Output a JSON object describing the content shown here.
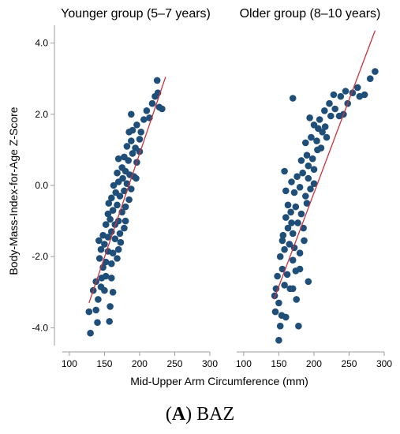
{
  "caption": {
    "letter": "A",
    "text": "BAZ"
  },
  "chart_data": {
    "type": "scatter",
    "ylabel": "Body-Mass-Index-for-Age Z-Score",
    "xlabel": "Mid-Upper Arm Circumference (mm)",
    "xlim": [
      90,
      300
    ],
    "ylim": [
      -4.5,
      4.5
    ],
    "x_ticks": [
      100,
      150,
      200,
      250,
      300
    ],
    "y_ticks": [
      -4.0,
      -2.0,
      0.0,
      2.0,
      4.0
    ],
    "y_tick_labels": [
      "-4.0",
      "-2.0",
      "0.0",
      "2.0",
      "4.0"
    ],
    "colors": {
      "points": "#1f4e79",
      "fit": "#c8323c",
      "axis": "#9e9e9e"
    },
    "panels": [
      {
        "title": "Younger group (5–7 years)",
        "fit_line": {
          "x": [
            128,
            237
          ],
          "y": [
            -3.3,
            3.05
          ]
        },
        "points": [
          [
            130,
            -4.15
          ],
          [
            128,
            -3.55
          ],
          [
            140,
            -3.85
          ],
          [
            157,
            -3.82
          ],
          [
            158,
            -3.4
          ],
          [
            141,
            -3.2
          ],
          [
            134,
            -2.95
          ],
          [
            138,
            -2.7
          ],
          [
            145,
            -2.85
          ],
          [
            152,
            -2.55
          ],
          [
            160,
            -2.6
          ],
          [
            148,
            -2.3
          ],
          [
            143,
            -2.05
          ],
          [
            152,
            -2.15
          ],
          [
            160,
            -2.2
          ],
          [
            168,
            -2.05
          ],
          [
            145,
            -1.8
          ],
          [
            150,
            -1.65
          ],
          [
            155,
            -1.85
          ],
          [
            162,
            -1.9
          ],
          [
            170,
            -1.8
          ],
          [
            148,
            -1.4
          ],
          [
            155,
            -1.45
          ],
          [
            160,
            -1.3
          ],
          [
            165,
            -1.5
          ],
          [
            172,
            -1.35
          ],
          [
            152,
            -1.1
          ],
          [
            158,
            -0.95
          ],
          [
            165,
            -1.1
          ],
          [
            170,
            -1.0
          ],
          [
            178,
            -1.2
          ],
          [
            155,
            -0.8
          ],
          [
            162,
            -0.7
          ],
          [
            168,
            -0.55
          ],
          [
            175,
            -0.75
          ],
          [
            180,
            -0.6
          ],
          [
            160,
            -0.35
          ],
          [
            166,
            -0.2
          ],
          [
            172,
            -0.3
          ],
          [
            178,
            -0.15
          ],
          [
            185,
            -0.4
          ],
          [
            163,
            0.0
          ],
          [
            170,
            0.1
          ],
          [
            176,
            0.2
          ],
          [
            182,
            0.05
          ],
          [
            188,
            -0.1
          ],
          [
            168,
            0.35
          ],
          [
            175,
            0.5
          ],
          [
            180,
            0.4
          ],
          [
            186,
            0.3
          ],
          [
            192,
            0.25
          ],
          [
            178,
            0.8
          ],
          [
            184,
            0.7
          ],
          [
            190,
            0.9
          ],
          [
            196,
            0.65
          ],
          [
            182,
            1.1
          ],
          [
            188,
            1.25
          ],
          [
            194,
            1.05
          ],
          [
            200,
            1.3
          ],
          [
            190,
            1.55
          ],
          [
            196,
            1.7
          ],
          [
            202,
            1.5
          ],
          [
            188,
            2.0
          ],
          [
            206,
            1.85
          ],
          [
            210,
            2.1
          ],
          [
            214,
            1.9
          ],
          [
            218,
            2.3
          ],
          [
            222,
            2.5
          ],
          [
            225,
            2.95
          ],
          [
            228,
            2.2
          ],
          [
            232,
            2.15
          ],
          [
            226,
            2.6
          ],
          [
            195,
            0.2
          ],
          [
            150,
            -2.95
          ],
          [
            138,
            -3.5
          ],
          [
            162,
            -3.0
          ],
          [
            200,
            0.95
          ],
          [
            185,
            1.5
          ],
          [
            173,
            -1.6
          ],
          [
            146,
            -2.6
          ],
          [
            156,
            -0.5
          ],
          [
            170,
            0.75
          ],
          [
            142,
            -1.55
          ],
          [
            180,
            -1.0
          ]
        ]
      },
      {
        "title": "Older group (8–10 years)",
        "fit_line": {
          "x": [
            143,
            287
          ],
          "y": [
            -3.2,
            4.35
          ]
        },
        "points": [
          [
            150,
            -4.35
          ],
          [
            145,
            -3.55
          ],
          [
            152,
            -3.95
          ],
          [
            160,
            -3.7
          ],
          [
            178,
            -3.95
          ],
          [
            144,
            -3.1
          ],
          [
            150,
            -3.3
          ],
          [
            158,
            -2.8
          ],
          [
            166,
            -2.9
          ],
          [
            175,
            -3.2
          ],
          [
            148,
            -2.55
          ],
          [
            155,
            -2.35
          ],
          [
            162,
            -2.5
          ],
          [
            170,
            -2.1
          ],
          [
            192,
            -2.7
          ],
          [
            152,
            -2.0
          ],
          [
            158,
            -1.8
          ],
          [
            165,
            -1.65
          ],
          [
            172,
            -1.75
          ],
          [
            180,
            -1.9
          ],
          [
            156,
            -1.4
          ],
          [
            163,
            -1.2
          ],
          [
            170,
            -1.35
          ],
          [
            177,
            -1.05
          ],
          [
            185,
            -1.2
          ],
          [
            160,
            -0.9
          ],
          [
            167,
            -0.75
          ],
          [
            174,
            -0.6
          ],
          [
            182,
            -0.8
          ],
          [
            190,
            -0.5
          ],
          [
            163,
            -0.55
          ],
          [
            172,
            -0.2
          ],
          [
            180,
            -0.05
          ],
          [
            188,
            -0.3
          ],
          [
            195,
            -0.1
          ],
          [
            168,
            0.1
          ],
          [
            176,
            0.25
          ],
          [
            184,
            0.35
          ],
          [
            192,
            0.2
          ],
          [
            200,
            0.45
          ],
          [
            158,
            0.4
          ],
          [
            182,
            0.7
          ],
          [
            190,
            0.85
          ],
          [
            198,
            0.75
          ],
          [
            205,
            1.0
          ],
          [
            188,
            1.2
          ],
          [
            196,
            1.35
          ],
          [
            204,
            1.25
          ],
          [
            212,
            1.5
          ],
          [
            200,
            1.7
          ],
          [
            208,
            1.85
          ],
          [
            216,
            1.65
          ],
          [
            224,
            1.95
          ],
          [
            215,
            2.1
          ],
          [
            222,
            2.3
          ],
          [
            230,
            2.15
          ],
          [
            238,
            2.5
          ],
          [
            245,
            2.65
          ],
          [
            248,
            2.3
          ],
          [
            255,
            2.6
          ],
          [
            265,
            2.5
          ],
          [
            272,
            2.55
          ],
          [
            280,
            3.0
          ],
          [
            287,
            3.2
          ],
          [
            170,
            2.45
          ],
          [
            194,
            1.9
          ],
          [
            155,
            -1.55
          ],
          [
            174,
            -2.4
          ],
          [
            186,
            -1.55
          ],
          [
            210,
            1.05
          ],
          [
            236,
            1.95
          ],
          [
            160,
            -0.15
          ],
          [
            146,
            -2.9
          ],
          [
            200,
            0.05
          ],
          [
            180,
            -2.35
          ],
          [
            242,
            2.0
          ],
          [
            262,
            2.75
          ],
          [
            228,
            2.55
          ],
          [
            168,
            -1.05
          ],
          [
            192,
            0.55
          ],
          [
            218,
            1.35
          ],
          [
            154,
            -3.65
          ],
          [
            170,
            -2.9
          ],
          [
            206,
            1.6
          ]
        ]
      }
    ]
  }
}
